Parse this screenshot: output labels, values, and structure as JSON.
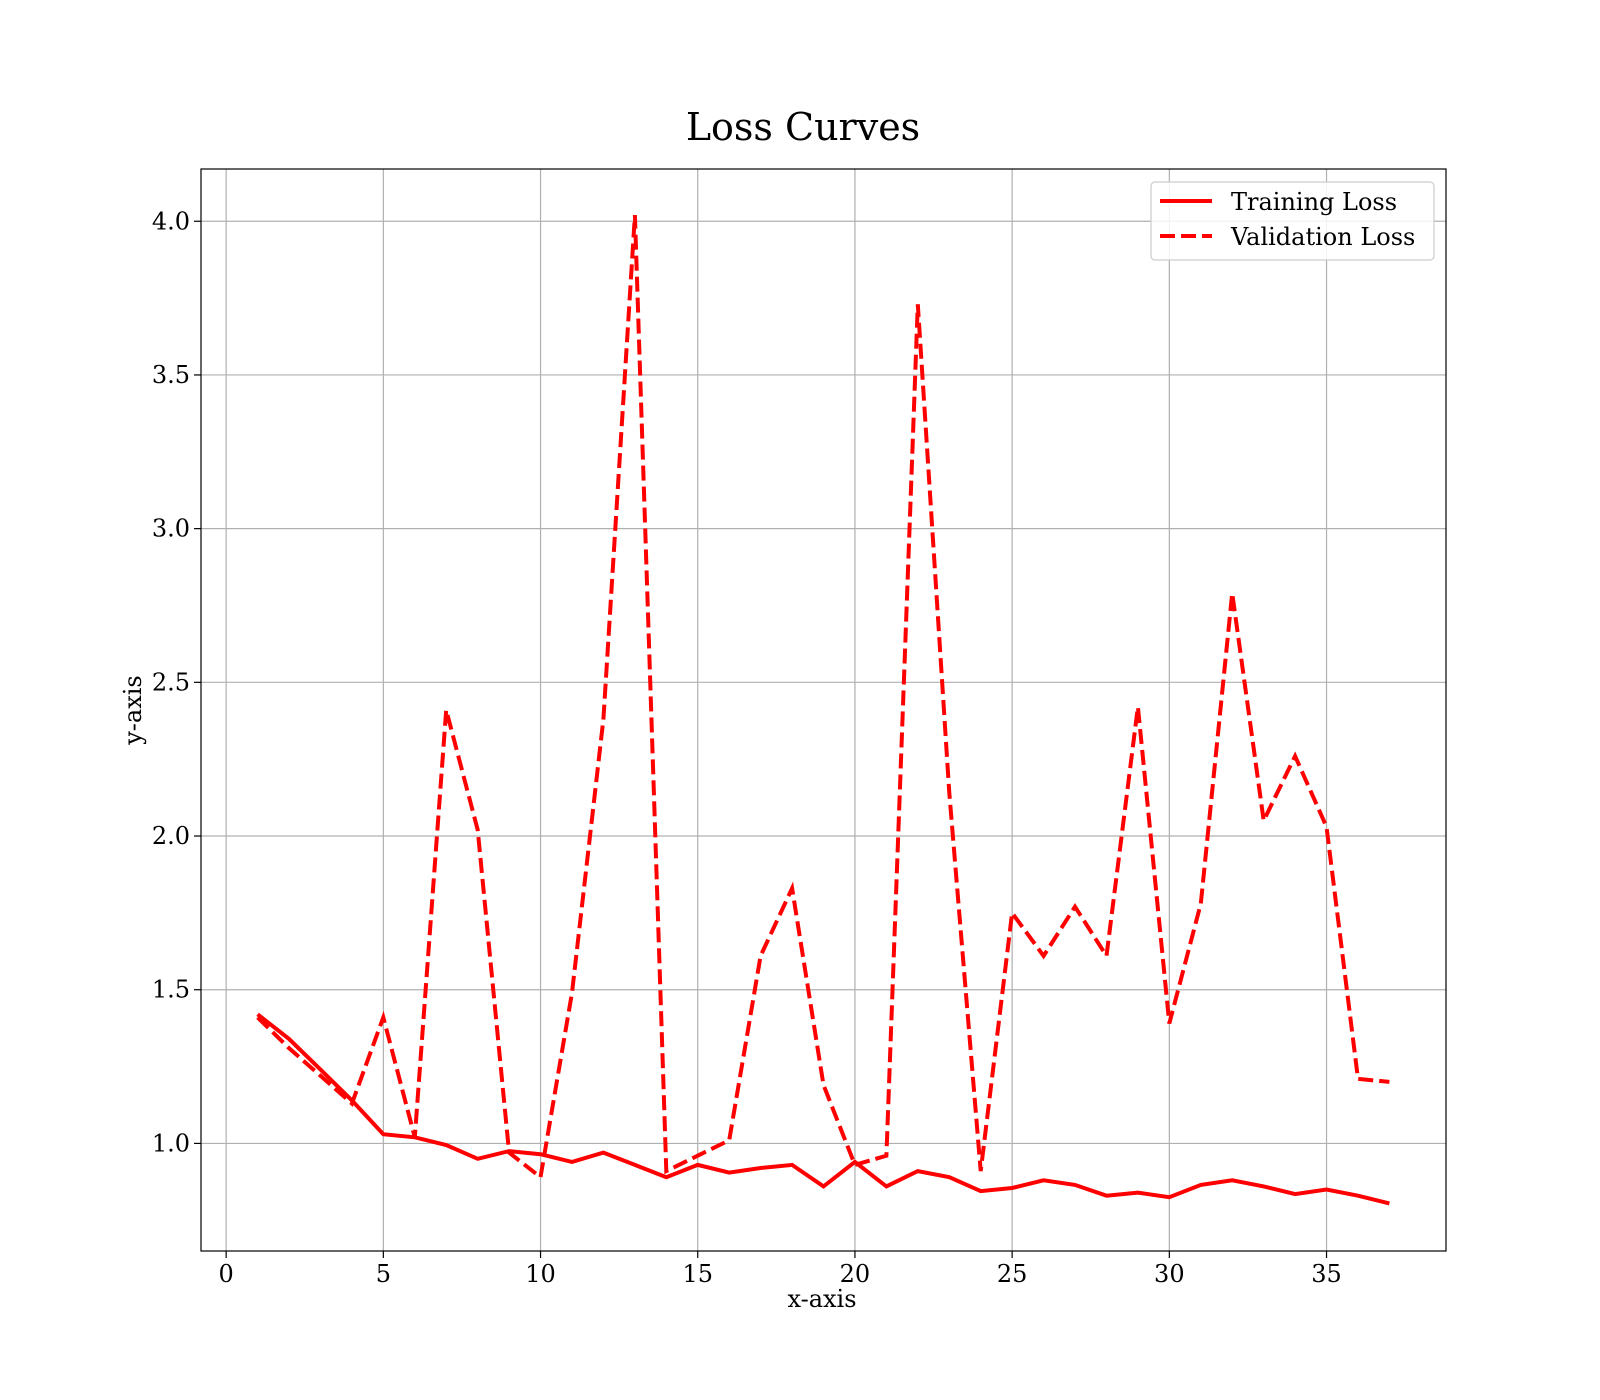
{
  "chart_data": {
    "type": "line",
    "title": "Loss Curves",
    "xlabel": "x-axis",
    "ylabel": "y-axis",
    "xlim": [
      -0.8,
      38.8
    ],
    "ylim": [
      0.65,
      4.17
    ],
    "xticks": [
      0,
      5,
      10,
      15,
      20,
      25,
      30,
      35
    ],
    "yticks": [
      1.0,
      1.5,
      2.0,
      2.5,
      3.0,
      3.5,
      4.0
    ],
    "grid": true,
    "legend_position": "top-right",
    "x": [
      1,
      2,
      3,
      4,
      5,
      6,
      7,
      8,
      9,
      10,
      11,
      12,
      13,
      14,
      15,
      16,
      17,
      18,
      19,
      20,
      21,
      22,
      23,
      24,
      25,
      26,
      27,
      28,
      29,
      30,
      31,
      32,
      33,
      34,
      35,
      36,
      37
    ],
    "series": [
      {
        "name": "Training Loss",
        "color": "#ff0000",
        "style": "solid",
        "values": [
          1.42,
          1.34,
          1.24,
          1.14,
          1.03,
          1.02,
          0.995,
          0.95,
          0.975,
          0.965,
          0.94,
          0.97,
          0.93,
          0.89,
          0.93,
          0.905,
          0.92,
          0.93,
          0.86,
          0.94,
          0.86,
          0.91,
          0.89,
          0.845,
          0.855,
          0.88,
          0.865,
          0.83,
          0.84,
          0.825,
          0.865,
          0.88,
          0.86,
          0.835,
          0.85,
          0.83,
          0.805
        ]
      },
      {
        "name": "Validation Loss",
        "color": "#ff0000",
        "style": "dashed",
        "values": [
          1.41,
          1.31,
          1.22,
          1.13,
          1.41,
          1.02,
          2.41,
          2.02,
          0.97,
          0.89,
          1.49,
          2.38,
          4.02,
          0.91,
          0.96,
          1.01,
          1.61,
          1.83,
          1.19,
          0.93,
          0.96,
          3.73,
          2.14,
          0.91,
          1.75,
          1.61,
          1.77,
          1.61,
          2.42,
          1.39,
          1.78,
          2.79,
          2.05,
          2.26,
          2.03,
          1.21,
          1.2
        ]
      }
    ]
  }
}
